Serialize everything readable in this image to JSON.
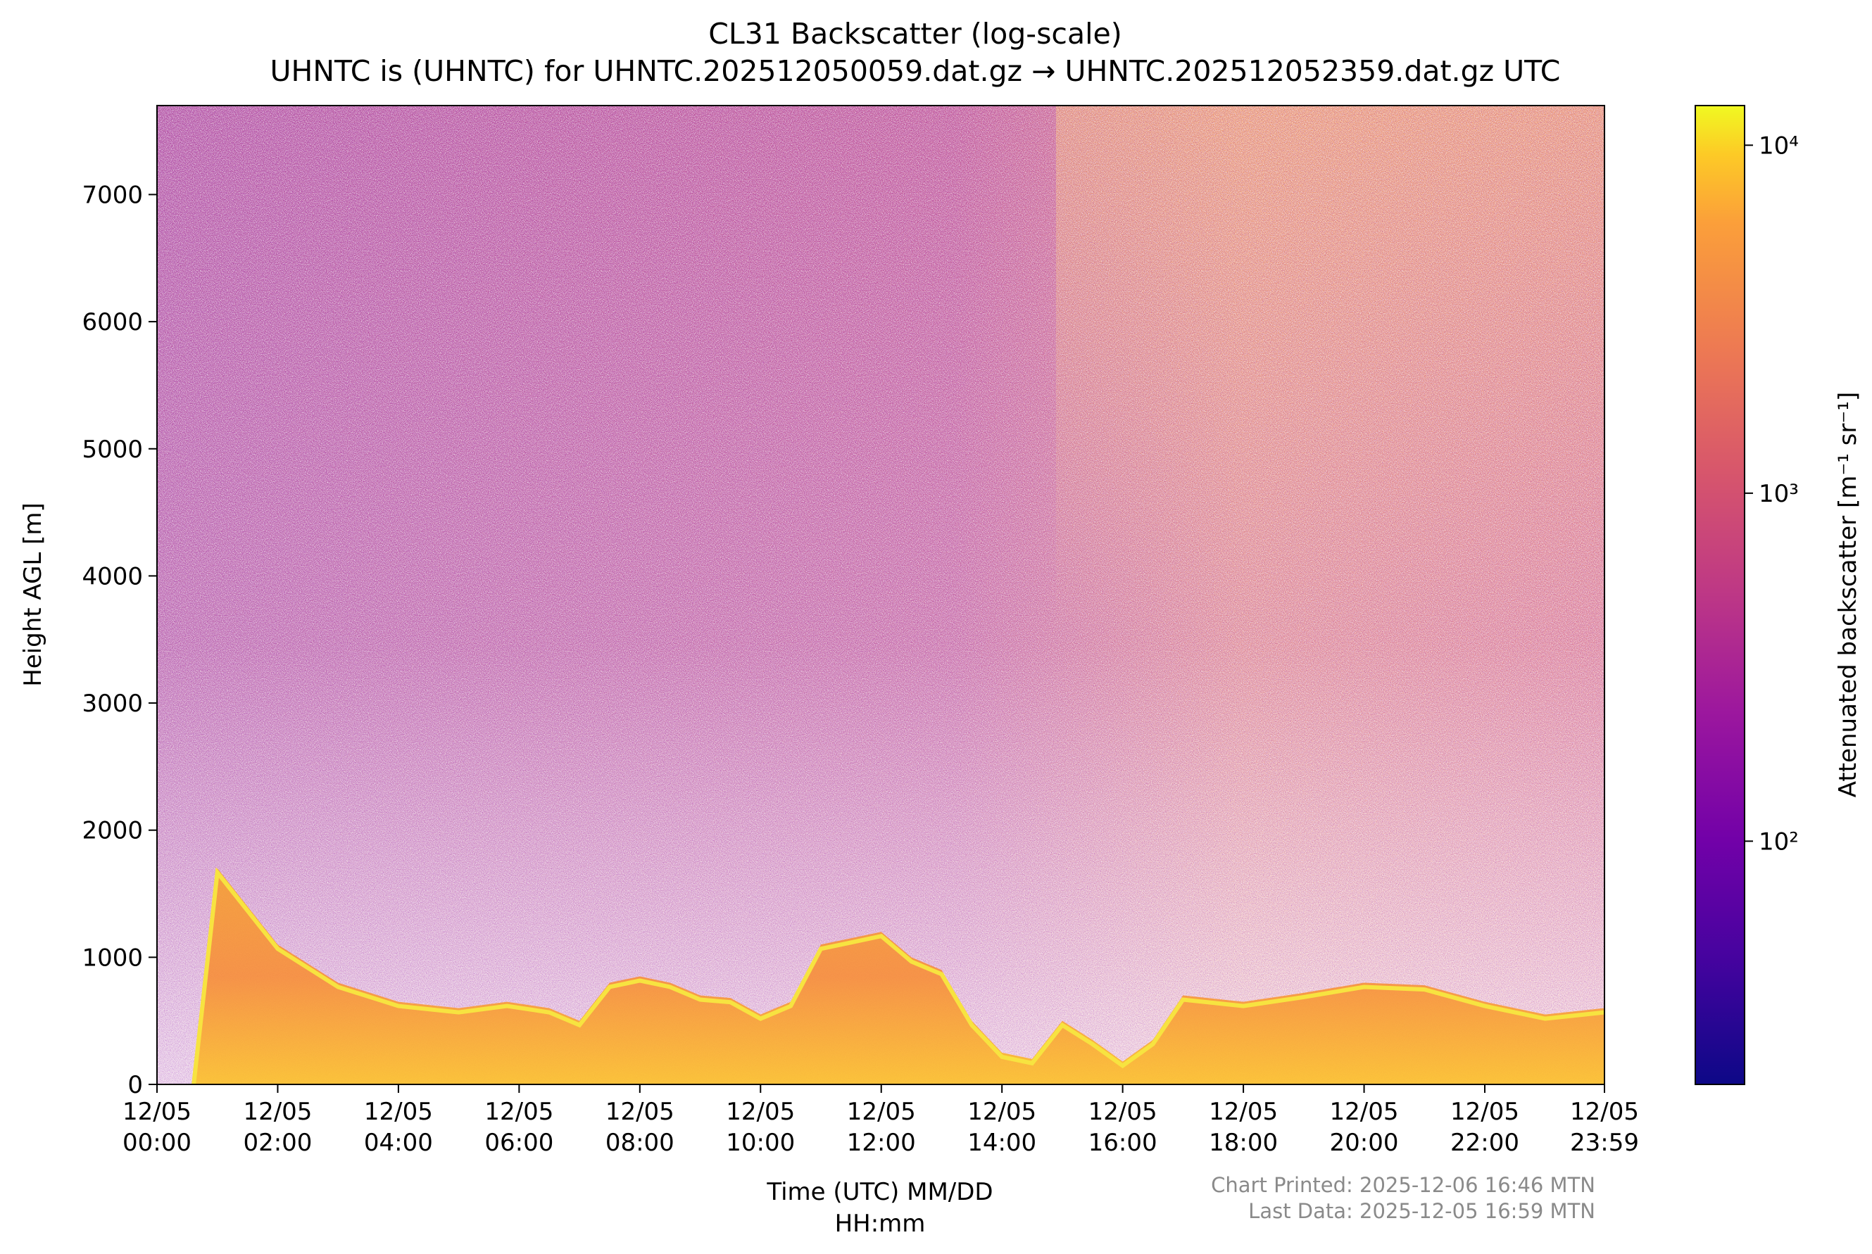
{
  "title": "CL31 Backscatter (log-scale)",
  "subtitle": "UHNTC is (UHNTC) for UHNTC.202512050059.dat.gz → UHNTC.202512052359.dat.gz UTC",
  "footer": {
    "printed": "Chart Printed: 2025-12-06 16:46 MTN",
    "last_data": "Last Data: 2025-12-05 16:59 MTN"
  },
  "chart_data": {
    "type": "heatmap",
    "title": "CL31 Backscatter (log-scale)",
    "xlabel": "Time (UTC) MM/DD\nHH:mm",
    "ylabel": "Height AGL [m]",
    "colorbar_label": "Attenuated backscatter [m⁻¹ sr⁻¹]",
    "colormap": "plasma",
    "color_scale": "log",
    "color_range": [
      20,
      13000
    ],
    "colorbar_ticks": [
      {
        "value": 100,
        "label": "10²"
      },
      {
        "value": 1000,
        "label": "10³"
      },
      {
        "value": 10000,
        "label": "10⁴"
      }
    ],
    "x_range_hours": [
      0,
      23.983
    ],
    "ylim": [
      0,
      7700
    ],
    "y_ticks": [
      0,
      1000,
      2000,
      3000,
      4000,
      5000,
      6000,
      7000
    ],
    "x_ticks": [
      {
        "hour": 0,
        "date": "12/05",
        "time": "00:00"
      },
      {
        "hour": 2,
        "date": "12/05",
        "time": "02:00"
      },
      {
        "hour": 4,
        "date": "12/05",
        "time": "04:00"
      },
      {
        "hour": 6,
        "date": "12/05",
        "time": "06:00"
      },
      {
        "hour": 8,
        "date": "12/05",
        "time": "08:00"
      },
      {
        "hour": 10,
        "date": "12/05",
        "time": "10:00"
      },
      {
        "hour": 12,
        "date": "12/05",
        "time": "12:00"
      },
      {
        "hour": 14,
        "date": "12/05",
        "time": "14:00"
      },
      {
        "hour": 16,
        "date": "12/05",
        "time": "16:00"
      },
      {
        "hour": 18,
        "date": "12/05",
        "time": "18:00"
      },
      {
        "hour": 20,
        "date": "12/05",
        "time": "20:00"
      },
      {
        "hour": 22,
        "date": "12/05",
        "time": "22:00"
      },
      {
        "hour": 23.983,
        "date": "12/05",
        "time": "23:59"
      }
    ],
    "boundary_layer_top_m": {
      "hours": [
        0,
        0.6,
        1,
        2,
        3,
        4,
        5,
        5.8,
        6.5,
        7,
        7.5,
        8,
        8.5,
        9,
        9.5,
        10,
        10.5,
        11,
        11.5,
        12,
        12.5,
        13,
        13.5,
        14,
        14.5,
        15,
        15.5,
        16,
        16.5,
        17,
        18,
        19,
        20,
        21,
        22,
        23,
        23.98
      ],
      "values": [
        0,
        0,
        1700,
        1100,
        800,
        650,
        600,
        650,
        600,
        500,
        800,
        850,
        800,
        700,
        680,
        550,
        650,
        1100,
        1150,
        1200,
        1000,
        900,
        500,
        250,
        200,
        500,
        350,
        180,
        350,
        700,
        650,
        720,
        800,
        780,
        650,
        550,
        600
      ]
    }
  }
}
